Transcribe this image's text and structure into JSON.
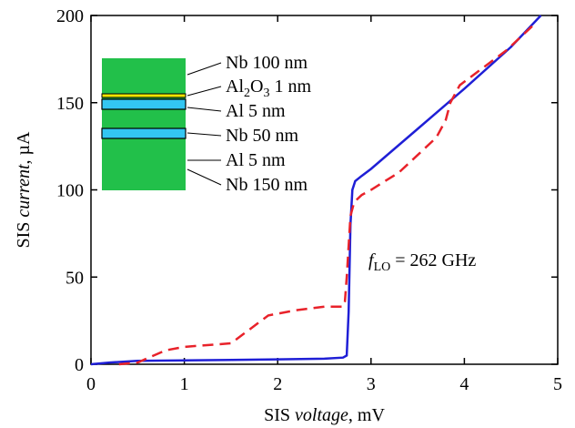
{
  "chart_data": {
    "type": "line",
    "xlabel": [
      "SIS ",
      "voltage",
      ", mV"
    ],
    "ylabel": [
      "SIS ",
      "current",
      ", µA"
    ],
    "xlim": [
      0,
      5
    ],
    "ylim": [
      0,
      200
    ],
    "xticks": [
      0,
      1,
      2,
      3,
      4,
      5
    ],
    "yticks": [
      0,
      50,
      100,
      150,
      200
    ],
    "annotation": [
      "f",
      "LO",
      " = 262 GHz"
    ],
    "inset_labels": [
      [
        "Nb 100 nm"
      ],
      [
        "Al",
        "2",
        "O",
        "3",
        " 1 nm"
      ],
      [
        "Al 5 nm"
      ],
      [
        "Nb 50 nm"
      ],
      [
        "Al 5 nm"
      ],
      [
        "Nb 150 nm"
      ]
    ],
    "series": [
      {
        "color": "#1f1fd6",
        "dashed": false,
        "x": [
          0,
          0.2,
          0.5,
          1,
          1.5,
          2,
          2.5,
          2.7,
          2.74,
          2.76,
          2.78,
          2.8,
          2.83,
          2.9,
          3,
          3.5,
          4,
          4.5,
          4.82
        ],
        "values": [
          0,
          1,
          2,
          2.2,
          2.5,
          2.8,
          3.2,
          3.8,
          5,
          30,
          80,
          100,
          105,
          108,
          112,
          135,
          158,
          182,
          200
        ]
      },
      {
        "color": "#e8222a",
        "dashed": true,
        "x": [
          0.3,
          0.5,
          0.8,
          1,
          1.5,
          1.7,
          1.9,
          2.2,
          2.5,
          2.7,
          2.72,
          2.74,
          2.78,
          2.82,
          2.9,
          3,
          3.3,
          3.5,
          3.7,
          3.8,
          3.85,
          3.95,
          4.2,
          4.45,
          4.75
        ],
        "values": [
          0,
          1,
          8,
          10,
          12,
          20,
          28,
          31,
          33,
          33,
          36,
          50,
          85,
          93,
          97,
          100,
          110,
          120,
          130,
          140,
          150,
          160,
          170,
          180,
          195
        ]
      }
    ]
  }
}
